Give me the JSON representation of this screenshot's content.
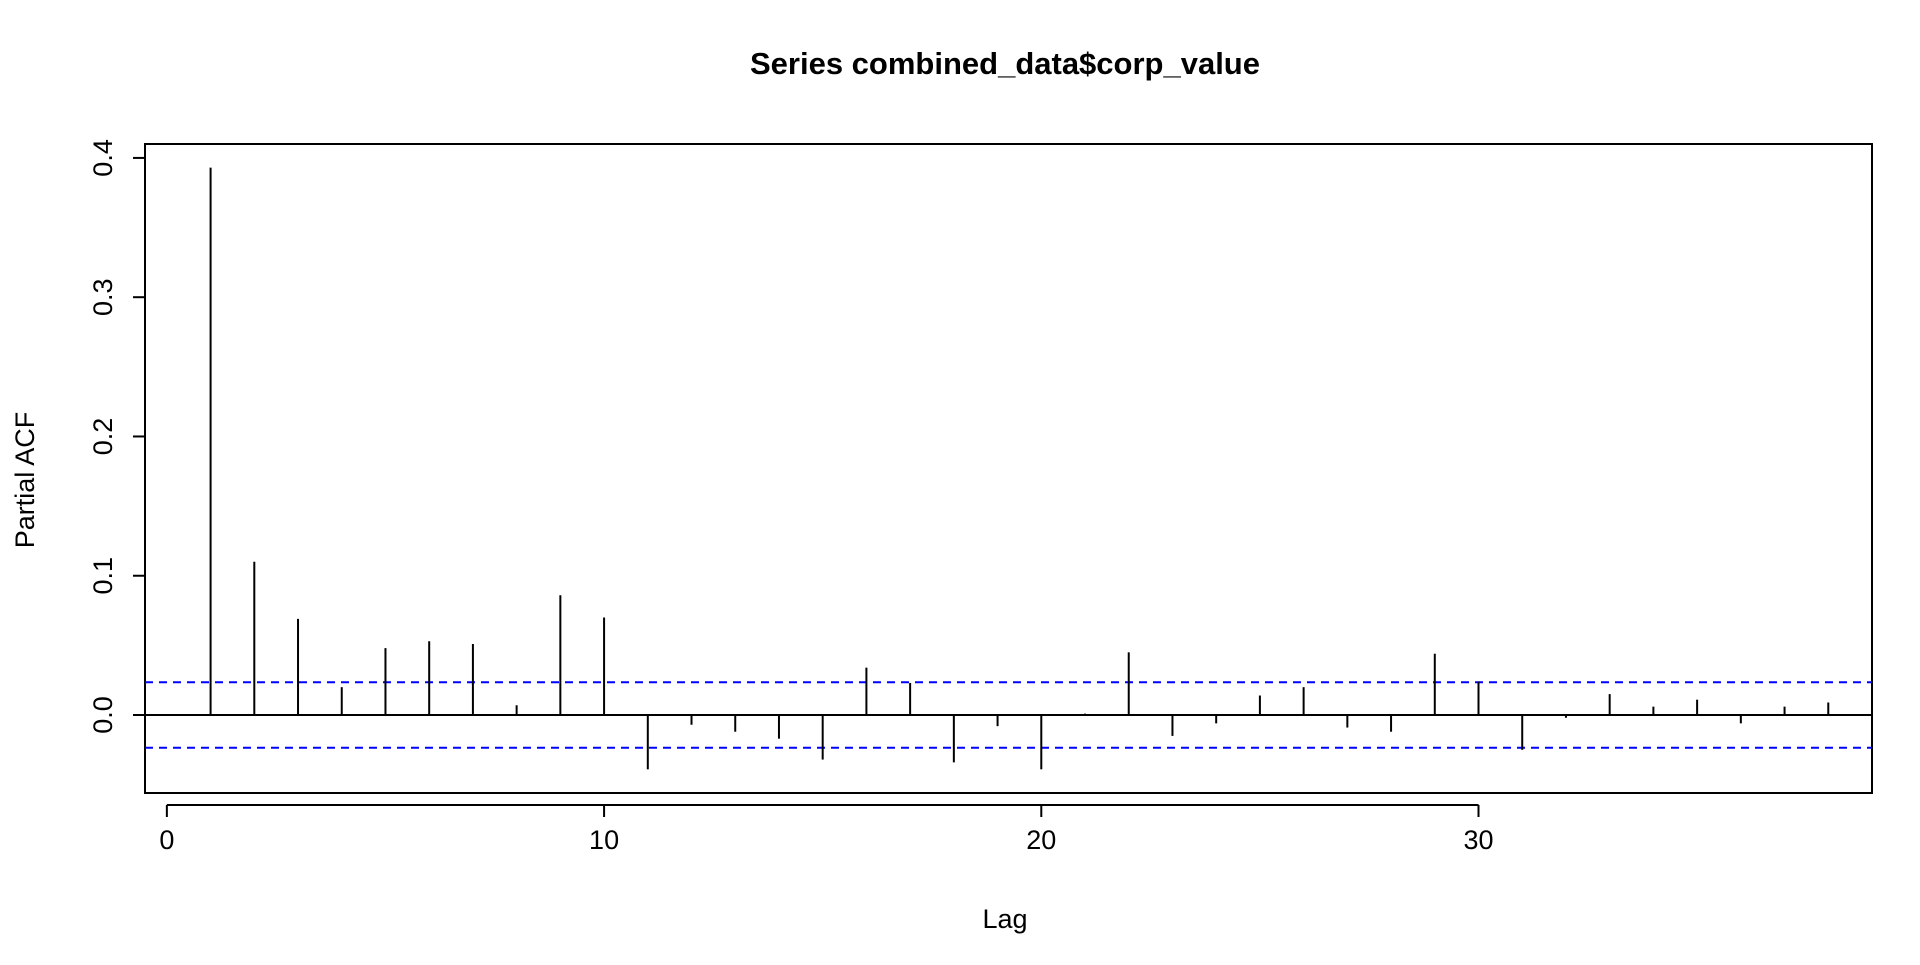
{
  "chart_data": {
    "type": "bar",
    "title": "Series  combined_data$corp_value",
    "xlabel": "Lag",
    "ylabel": "Partial ACF",
    "xlim": [
      -0.5,
      39.0
    ],
    "ylim": [
      -0.056,
      0.41
    ],
    "x_ticks": [
      0,
      10,
      20,
      30
    ],
    "y_ticks": [
      0.0,
      0.1,
      0.2,
      0.3,
      0.4
    ],
    "x_tick_labels": [
      "0",
      "10",
      "20",
      "30"
    ],
    "y_tick_labels": [
      "0.0",
      "0.1",
      "0.2",
      "0.3",
      "0.4"
    ],
    "lags": [
      1,
      2,
      3,
      4,
      5,
      6,
      7,
      8,
      9,
      10,
      11,
      12,
      13,
      14,
      15,
      16,
      17,
      18,
      19,
      20,
      21,
      22,
      23,
      24,
      25,
      26,
      27,
      28,
      29,
      30,
      31,
      32,
      33,
      34,
      35,
      36,
      37,
      38
    ],
    "values": [
      0.393,
      0.11,
      0.069,
      0.02,
      0.048,
      0.053,
      0.051,
      0.007,
      0.086,
      0.07,
      -0.039,
      -0.007,
      -0.012,
      -0.017,
      -0.032,
      0.034,
      0.023,
      -0.034,
      -0.008,
      -0.039,
      0.001,
      0.045,
      -0.015,
      -0.006,
      0.014,
      0.02,
      -0.009,
      -0.012,
      0.044,
      0.024,
      -0.025,
      -0.002,
      0.015,
      0.006,
      0.011,
      -0.006,
      0.006,
      0.009
    ],
    "confidence_bound": 0.0235,
    "confidence_color": "#0000ff",
    "grid": false,
    "legend": "none"
  }
}
